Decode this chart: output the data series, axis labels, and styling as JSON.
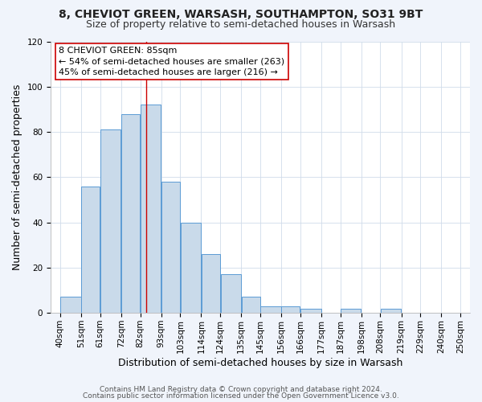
{
  "title": "8, CHEVIOT GREEN, WARSASH, SOUTHAMPTON, SO31 9BT",
  "subtitle": "Size of property relative to semi-detached houses in Warsash",
  "xlabel": "Distribution of semi-detached houses by size in Warsash",
  "ylabel": "Number of semi-detached properties",
  "bar_left_edges": [
    40,
    51,
    61,
    72,
    82,
    93,
    103,
    114,
    124,
    135,
    145,
    156,
    166,
    177,
    187,
    198,
    208,
    219,
    229,
    240
  ],
  "bar_widths": [
    11,
    10,
    11,
    10,
    11,
    10,
    11,
    10,
    11,
    10,
    11,
    10,
    11,
    10,
    11,
    10,
    11,
    10,
    11,
    10
  ],
  "bar_heights": [
    7,
    56,
    81,
    88,
    92,
    58,
    40,
    26,
    17,
    7,
    3,
    3,
    2,
    0,
    2,
    0,
    2,
    0,
    0,
    0
  ],
  "tick_labels": [
    "40sqm",
    "51sqm",
    "61sqm",
    "72sqm",
    "82sqm",
    "93sqm",
    "103sqm",
    "114sqm",
    "124sqm",
    "135sqm",
    "145sqm",
    "156sqm",
    "166sqm",
    "177sqm",
    "187sqm",
    "198sqm",
    "208sqm",
    "219sqm",
    "229sqm",
    "240sqm",
    "250sqm"
  ],
  "tick_positions": [
    40,
    51,
    61,
    72,
    82,
    93,
    103,
    114,
    124,
    135,
    145,
    156,
    166,
    177,
    187,
    198,
    208,
    219,
    229,
    240,
    250
  ],
  "bar_color": "#c9daea",
  "bar_edge_color": "#5b9bd5",
  "vline_x": 85,
  "vline_color": "#cc0000",
  "annotation_title": "8 CHEVIOT GREEN: 85sqm",
  "annotation_line1": "← 54% of semi-detached houses are smaller (263)",
  "annotation_line2": "45% of semi-detached houses are larger (216) →",
  "annotation_box_edge": "#cc0000",
  "ylim": [
    0,
    120
  ],
  "yticks": [
    0,
    20,
    40,
    60,
    80,
    100,
    120
  ],
  "footer1": "Contains HM Land Registry data © Crown copyright and database right 2024.",
  "footer2": "Contains public sector information licensed under the Open Government Licence v3.0.",
  "plot_bg_color": "#ffffff",
  "fig_bg_color": "#f0f4fb",
  "grid_color": "#d0dcea",
  "title_fontsize": 10,
  "subtitle_fontsize": 9,
  "axis_label_fontsize": 9,
  "tick_fontsize": 7.5,
  "annotation_fontsize": 8,
  "footer_fontsize": 6.5
}
